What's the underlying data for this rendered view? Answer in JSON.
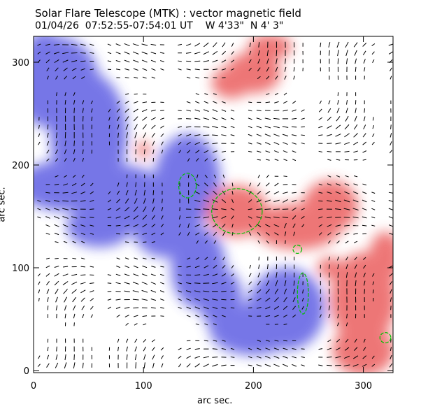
{
  "chart_data": {
    "type": "heatmap",
    "title": "Solar Flare Telescope (MTK) : vector magnetic field",
    "subtitle": "01/04/26  07:52:55-07:54:01 UT    W 4'33\"  N 4' 3\"",
    "xlabel": "arc sec.",
    "ylabel": "arc sec.",
    "xlim": [
      0,
      327
    ],
    "ylim": [
      0,
      325
    ],
    "xticks": [
      "0",
      "100",
      "200",
      "300"
    ],
    "yticks": [
      "0",
      "100",
      "200",
      "300"
    ],
    "colors": {
      "positive": "#e84848",
      "negative": "#4848e0",
      "vectors": "#000000",
      "contours": "#00c000"
    },
    "regions": [
      {
        "polarity": "negative",
        "x": 40,
        "y": 260
      },
      {
        "polarity": "negative",
        "x": 140,
        "y": 185
      },
      {
        "polarity": "negative",
        "x": 230,
        "y": 60
      },
      {
        "polarity": "positive",
        "x": 185,
        "y": 155
      },
      {
        "polarity": "positive",
        "x": 250,
        "y": 140
      },
      {
        "polarity": "positive",
        "x": 200,
        "y": 280
      },
      {
        "polarity": "positive",
        "x": 300,
        "y": 60
      }
    ]
  }
}
